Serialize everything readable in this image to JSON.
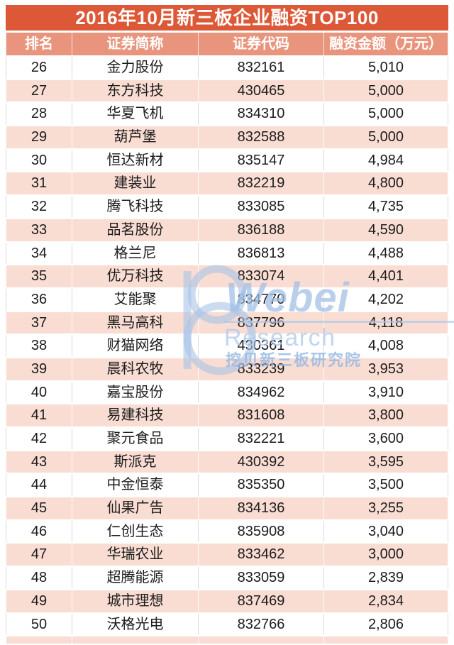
{
  "title": "2016年10月新三板企业融资TOP100",
  "table": {
    "columns": [
      "排名",
      "证券简称",
      "证券代码",
      "融资金额（万元）"
    ],
    "rows": [
      {
        "rank": "26",
        "name": "金力股份",
        "code": "832161",
        "amount": "5,010"
      },
      {
        "rank": "27",
        "name": "东方科技",
        "code": "430465",
        "amount": "5,000"
      },
      {
        "rank": "28",
        "name": "华夏飞机",
        "code": "834310",
        "amount": "5,000"
      },
      {
        "rank": "29",
        "name": "葫芦堡",
        "code": "832588",
        "amount": "5,000"
      },
      {
        "rank": "30",
        "name": "恒达新材",
        "code": "835147",
        "amount": "4,984"
      },
      {
        "rank": "31",
        "name": "建装业",
        "code": "832219",
        "amount": "4,800"
      },
      {
        "rank": "32",
        "name": "腾飞科技",
        "code": "833085",
        "amount": "4,735"
      },
      {
        "rank": "33",
        "name": "品茗股份",
        "code": "836188",
        "amount": "4,590"
      },
      {
        "rank": "34",
        "name": "格兰尼",
        "code": "836813",
        "amount": "4,488"
      },
      {
        "rank": "35",
        "name": "优万科技",
        "code": "833074",
        "amount": "4,401"
      },
      {
        "rank": "36",
        "name": "艾能聚",
        "code": "834770",
        "amount": "4,202"
      },
      {
        "rank": "37",
        "name": "黑马高科",
        "code": "837796",
        "amount": "4,118"
      },
      {
        "rank": "38",
        "name": "财猫网络",
        "code": "430361",
        "amount": "4,008"
      },
      {
        "rank": "39",
        "name": "晨科农牧",
        "code": "833239",
        "amount": "3,953"
      },
      {
        "rank": "40",
        "name": "嘉宝股份",
        "code": "834962",
        "amount": "3,910"
      },
      {
        "rank": "41",
        "name": "易建科技",
        "code": "831608",
        "amount": "3,800"
      },
      {
        "rank": "42",
        "name": "聚元食品",
        "code": "832221",
        "amount": "3,600"
      },
      {
        "rank": "43",
        "name": "斯派克",
        "code": "430392",
        "amount": "3,595"
      },
      {
        "rank": "44",
        "name": "中金恒泰",
        "code": "835350",
        "amount": "3,500"
      },
      {
        "rank": "45",
        "name": "仙果广告",
        "code": "834136",
        "amount": "3,255"
      },
      {
        "rank": "46",
        "name": "仁创生态",
        "code": "835908",
        "amount": "3,040"
      },
      {
        "rank": "47",
        "name": "华瑞农业",
        "code": "833462",
        "amount": "3,000"
      },
      {
        "rank": "48",
        "name": "超腾能源",
        "code": "833059",
        "amount": "2,839"
      },
      {
        "rank": "49",
        "name": "城市理想",
        "code": "837469",
        "amount": "2,834"
      },
      {
        "rank": "50",
        "name": "沃格光电",
        "code": "832766",
        "amount": "2,806"
      }
    ]
  },
  "watermark": {
    "brand": "Webei",
    "subtitle": "Research",
    "chinese": "挖贝新三板研究院"
  },
  "colors": {
    "banner": "#DC5836",
    "header_row": "#E9947C",
    "alt_row": "#F9DDD3",
    "text": "#1C1C1C",
    "watermark_blue": "#A2BFE4"
  },
  "chart_data": {
    "type": "table",
    "title": "2016年10月新三板企业融资TOP100",
    "columns": [
      "排名",
      "证券简称",
      "证券代码",
      "融资金额（万元）"
    ],
    "rows": [
      [
        26,
        "金力股份",
        "832161",
        5010
      ],
      [
        27,
        "东方科技",
        "430465",
        5000
      ],
      [
        28,
        "华夏飞机",
        "834310",
        5000
      ],
      [
        29,
        "葫芦堡",
        "832588",
        5000
      ],
      [
        30,
        "恒达新材",
        "835147",
        4984
      ],
      [
        31,
        "建装业",
        "832219",
        4800
      ],
      [
        32,
        "腾飞科技",
        "833085",
        4735
      ],
      [
        33,
        "品茗股份",
        "836188",
        4590
      ],
      [
        34,
        "格兰尼",
        "836813",
        4488
      ],
      [
        35,
        "优万科技",
        "833074",
        4401
      ],
      [
        36,
        "艾能聚",
        "834770",
        4202
      ],
      [
        37,
        "黑马高科",
        "837796",
        4118
      ],
      [
        38,
        "财猫网络",
        "430361",
        4008
      ],
      [
        39,
        "晨科农牧",
        "833239",
        3953
      ],
      [
        40,
        "嘉宝股份",
        "834962",
        3910
      ],
      [
        41,
        "易建科技",
        "831608",
        3800
      ],
      [
        42,
        "聚元食品",
        "832221",
        3600
      ],
      [
        43,
        "斯派克",
        "430392",
        3595
      ],
      [
        44,
        "中金恒泰",
        "835350",
        3500
      ],
      [
        45,
        "仙果广告",
        "834136",
        3255
      ],
      [
        46,
        "仁创生态",
        "835908",
        3040
      ],
      [
        47,
        "华瑞农业",
        "833462",
        3000
      ],
      [
        48,
        "超腾能源",
        "833059",
        2839
      ],
      [
        49,
        "城市理想",
        "837469",
        2834
      ],
      [
        50,
        "沃格光电",
        "832766",
        2806
      ]
    ]
  }
}
